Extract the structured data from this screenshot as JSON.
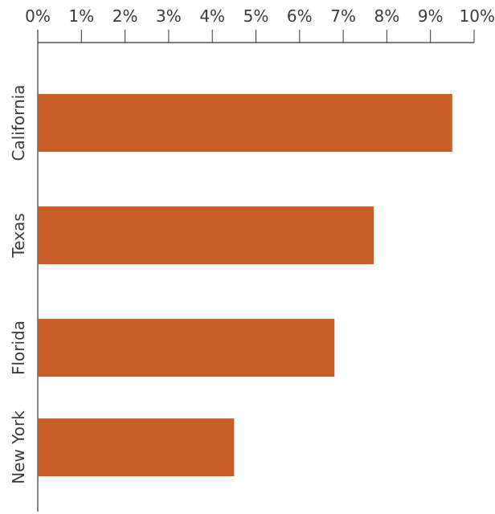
{
  "chart_data": {
    "type": "bar",
    "orientation": "horizontal",
    "categories": [
      "California",
      "Texas",
      "Florida",
      "New York"
    ],
    "values": [
      9.5,
      7.7,
      6.8,
      4.5
    ],
    "value_unit": "%",
    "xlim": [
      0,
      10
    ],
    "x_ticks": [
      0,
      1,
      2,
      3,
      4,
      5,
      6,
      7,
      8,
      9,
      10
    ],
    "x_tick_labels": [
      "0%",
      "1%",
      "2%",
      "3%",
      "4%",
      "5%",
      "6%",
      "7%",
      "8%",
      "9%",
      "10%"
    ],
    "x_axis_position": "top",
    "category_label_orientation": "vertical",
    "title": "",
    "xlabel": "",
    "ylabel": "",
    "grid": false,
    "legend": "none",
    "colors": {
      "bar": "#C85E28",
      "axis": "#333333",
      "text": "#3a3a3a",
      "background": "#ffffff"
    }
  }
}
